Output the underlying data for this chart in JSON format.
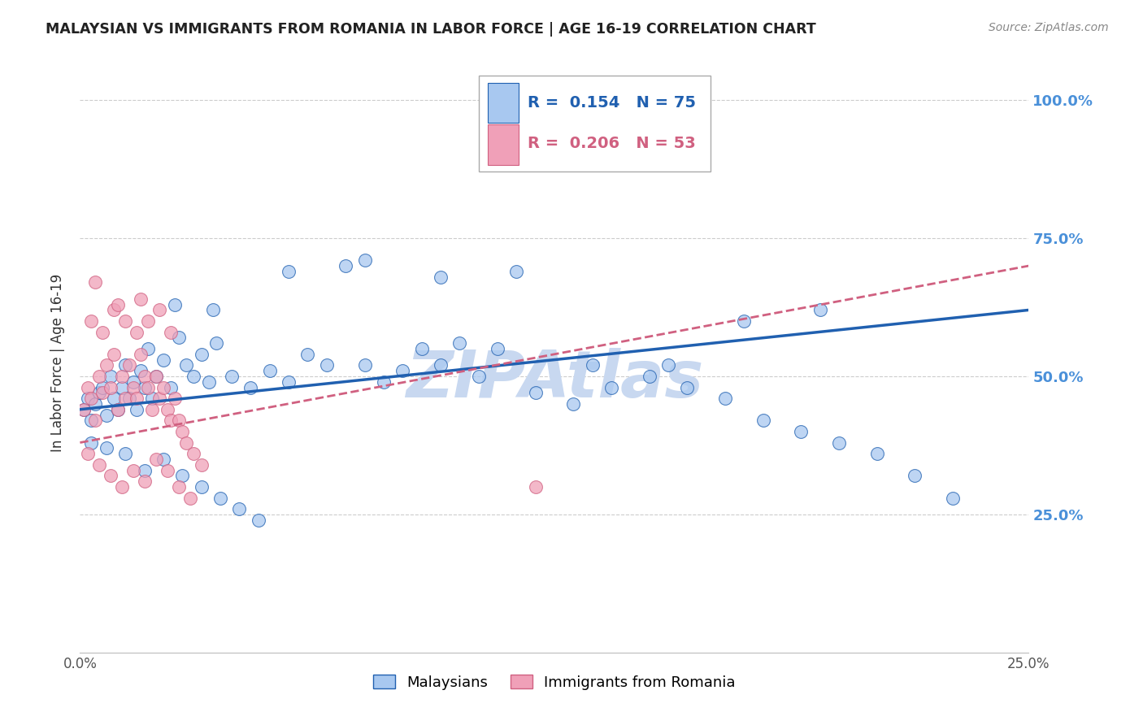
{
  "title": "MALAYSIAN VS IMMIGRANTS FROM ROMANIA IN LABOR FORCE | AGE 16-19 CORRELATION CHART",
  "source": "Source: ZipAtlas.com",
  "ylabel": "In Labor Force | Age 16-19",
  "legend_label1": "Malaysians",
  "legend_label2": "Immigrants from Romania",
  "watermark": "ZIPAtlas",
  "xlim": [
    0.0,
    0.25
  ],
  "ylim": [
    0.0,
    1.05
  ],
  "right_yticks": [
    0.25,
    0.5,
    0.75,
    1.0
  ],
  "right_yticklabels": [
    "25.0%",
    "50.0%",
    "75.0%",
    "100.0%"
  ],
  "xticks": [
    0.0,
    0.05,
    0.1,
    0.15,
    0.2,
    0.25
  ],
  "xticklabels": [
    "0.0%",
    "",
    "",
    "",
    "",
    "25.0%"
  ],
  "color_blue": "#A8C8F0",
  "color_pink": "#F0A0B8",
  "color_line_blue": "#2060B0",
  "color_line_pink": "#D06080",
  "color_right_labels": "#4A90D9",
  "color_title": "#222222",
  "color_watermark": "#C8D8F0",
  "blue_x": [
    0.001,
    0.002,
    0.003,
    0.004,
    0.005,
    0.006,
    0.007,
    0.008,
    0.009,
    0.01,
    0.011,
    0.012,
    0.013,
    0.014,
    0.015,
    0.016,
    0.017,
    0.018,
    0.019,
    0.02,
    0.022,
    0.024,
    0.026,
    0.028,
    0.03,
    0.032,
    0.034,
    0.036,
    0.04,
    0.045,
    0.05,
    0.055,
    0.06,
    0.065,
    0.07,
    0.075,
    0.08,
    0.085,
    0.09,
    0.095,
    0.1,
    0.105,
    0.11,
    0.12,
    0.13,
    0.14,
    0.15,
    0.16,
    0.17,
    0.18,
    0.19,
    0.2,
    0.21,
    0.22,
    0.23,
    0.025,
    0.035,
    0.055,
    0.075,
    0.095,
    0.115,
    0.135,
    0.155,
    0.175,
    0.195,
    0.003,
    0.007,
    0.012,
    0.017,
    0.022,
    0.027,
    0.032,
    0.037,
    0.042,
    0.047
  ],
  "blue_y": [
    0.44,
    0.46,
    0.42,
    0.45,
    0.47,
    0.48,
    0.43,
    0.5,
    0.46,
    0.44,
    0.48,
    0.52,
    0.46,
    0.49,
    0.44,
    0.51,
    0.48,
    0.55,
    0.46,
    0.5,
    0.53,
    0.48,
    0.57,
    0.52,
    0.5,
    0.54,
    0.49,
    0.56,
    0.5,
    0.48,
    0.51,
    0.49,
    0.54,
    0.52,
    0.7,
    0.52,
    0.49,
    0.51,
    0.55,
    0.52,
    0.56,
    0.5,
    0.55,
    0.47,
    0.45,
    0.48,
    0.5,
    0.48,
    0.46,
    0.42,
    0.4,
    0.38,
    0.36,
    0.32,
    0.28,
    0.63,
    0.62,
    0.69,
    0.71,
    0.68,
    0.69,
    0.52,
    0.52,
    0.6,
    0.62,
    0.38,
    0.37,
    0.36,
    0.33,
    0.35,
    0.32,
    0.3,
    0.28,
    0.26,
    0.24
  ],
  "pink_x": [
    0.001,
    0.002,
    0.003,
    0.004,
    0.005,
    0.006,
    0.007,
    0.008,
    0.009,
    0.01,
    0.011,
    0.012,
    0.013,
    0.014,
    0.015,
    0.016,
    0.017,
    0.018,
    0.019,
    0.02,
    0.021,
    0.022,
    0.023,
    0.024,
    0.025,
    0.026,
    0.027,
    0.028,
    0.03,
    0.032,
    0.003,
    0.006,
    0.009,
    0.012,
    0.015,
    0.018,
    0.021,
    0.024,
    0.002,
    0.005,
    0.008,
    0.011,
    0.014,
    0.017,
    0.02,
    0.023,
    0.026,
    0.029,
    0.004,
    0.01,
    0.016,
    0.12
  ],
  "pink_y": [
    0.44,
    0.48,
    0.46,
    0.42,
    0.5,
    0.47,
    0.52,
    0.48,
    0.54,
    0.44,
    0.5,
    0.46,
    0.52,
    0.48,
    0.46,
    0.54,
    0.5,
    0.48,
    0.44,
    0.5,
    0.46,
    0.48,
    0.44,
    0.42,
    0.46,
    0.42,
    0.4,
    0.38,
    0.36,
    0.34,
    0.6,
    0.58,
    0.62,
    0.6,
    0.58,
    0.6,
    0.62,
    0.58,
    0.36,
    0.34,
    0.32,
    0.3,
    0.33,
    0.31,
    0.35,
    0.33,
    0.3,
    0.28,
    0.67,
    0.63,
    0.64,
    0.3
  ],
  "blue_trend_x": [
    0.0,
    0.25
  ],
  "blue_trend_y": [
    0.44,
    0.62
  ],
  "pink_trend_x": [
    0.0,
    0.25
  ],
  "pink_trend_y": [
    0.38,
    0.7
  ]
}
